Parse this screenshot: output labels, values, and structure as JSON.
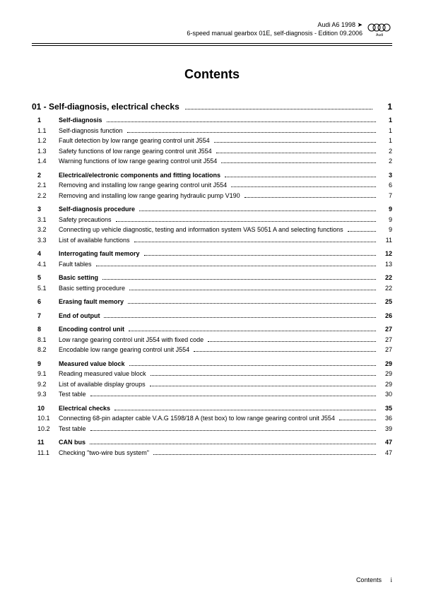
{
  "header": {
    "line1": "Audi A6 1998 ➤",
    "line2": "6-speed manual gearbox 01E, self-diagnosis - Edition 09.2006",
    "logo_label": "Audi"
  },
  "title": "Contents",
  "section": {
    "num": "01 -",
    "label": "Self-diagnosis, electrical checks",
    "page": "1"
  },
  "toc": [
    {
      "n": "1",
      "t": "Self-diagnosis",
      "p": "1",
      "b": true
    },
    {
      "n": "1.1",
      "t": "Self-diagnosis function",
      "p": "1"
    },
    {
      "n": "1.2",
      "t": "Fault detection by low range gearing control unit J554",
      "p": "1"
    },
    {
      "n": "1.3",
      "t": "Safety functions of low range gearing control unit J554",
      "p": "2"
    },
    {
      "n": "1.4",
      "t": "Warning functions of low range gearing control unit J554",
      "p": "2"
    },
    {
      "gap": true
    },
    {
      "n": "2",
      "t": "Electrical/electronic components and fitting locations",
      "p": "3",
      "b": true
    },
    {
      "n": "2.1",
      "t": "Removing and installing low range gearing control unit J554",
      "p": "6"
    },
    {
      "n": "2.2",
      "t": "Removing and installing low range gearing hydraulic pump V190",
      "p": "7"
    },
    {
      "gap": true
    },
    {
      "n": "3",
      "t": "Self-diagnosis procedure",
      "p": "9",
      "b": true
    },
    {
      "n": "3.1",
      "t": "Safety precautions",
      "p": "9"
    },
    {
      "n": "3.2",
      "t": "Connecting up vehicle diagnostic, testing and information system VAS 5051 A and selecting functions",
      "p": "9",
      "wrap": true
    },
    {
      "n": "3.3",
      "t": "List of available functions",
      "p": "11"
    },
    {
      "gap": true
    },
    {
      "n": "4",
      "t": "Interrogating fault memory",
      "p": "12",
      "b": true
    },
    {
      "n": "4.1",
      "t": "Fault tables",
      "p": "13"
    },
    {
      "gap": true
    },
    {
      "n": "5",
      "t": "Basic setting",
      "p": "22",
      "b": true
    },
    {
      "n": "5.1",
      "t": "Basic setting procedure",
      "p": "22"
    },
    {
      "gap": true
    },
    {
      "n": "6",
      "t": "Erasing fault memory",
      "p": "25",
      "b": true
    },
    {
      "gap": true
    },
    {
      "n": "7",
      "t": "End of output",
      "p": "26",
      "b": true
    },
    {
      "gap": true
    },
    {
      "n": "8",
      "t": "Encoding control unit",
      "p": "27",
      "b": true
    },
    {
      "n": "8.1",
      "t": "Low range gearing control unit J554 with fixed code",
      "p": "27"
    },
    {
      "n": "8.2",
      "t": "Encodable low range gearing control unit J554",
      "p": "27"
    },
    {
      "gap": true
    },
    {
      "n": "9",
      "t": "Measured value block",
      "p": "29",
      "b": true
    },
    {
      "n": "9.1",
      "t": "Reading measured value block",
      "p": "29"
    },
    {
      "n": "9.2",
      "t": "List of available display groups",
      "p": "29"
    },
    {
      "n": "9.3",
      "t": "Test table",
      "p": "30"
    },
    {
      "gap": true
    },
    {
      "n": "10",
      "t": "Electrical checks",
      "p": "35",
      "b": true
    },
    {
      "n": "10.1",
      "t": "Connecting 68-pin adapter cable V.A.G 1598/18 A (test box) to low range gearing control unit J554",
      "p": "36",
      "wrap": true
    },
    {
      "n": "10.2",
      "t": "Test table",
      "p": "39"
    },
    {
      "gap": true
    },
    {
      "n": "11",
      "t": "CAN bus",
      "p": "47",
      "b": true
    },
    {
      "n": "11.1",
      "t": "Checking \"two-wire bus system\"",
      "p": "47"
    }
  ],
  "footer": {
    "label": "Contents",
    "page": "i"
  },
  "colors": {
    "text": "#000000",
    "bg": "#ffffff"
  }
}
